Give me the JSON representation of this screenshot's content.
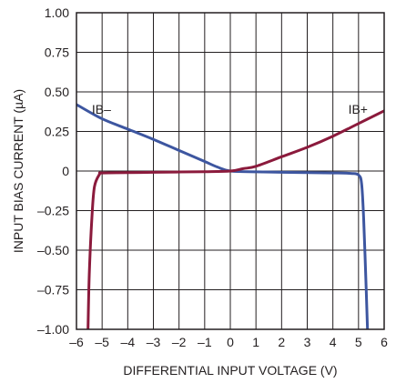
{
  "chart_data": {
    "type": "line",
    "title": "",
    "xlabel": "DIFFERENTIAL INPUT VOLTAGE (V)",
    "ylabel": "INPUT BIAS CURRENT (µA)",
    "xlim": [
      -6,
      6
    ],
    "ylim": [
      -1.0,
      1.0
    ],
    "x_ticks": [
      -6,
      -5,
      -4,
      -3,
      -2,
      -1,
      0,
      1,
      2,
      3,
      4,
      5,
      6
    ],
    "x_tick_labels": [
      "–6",
      "–5",
      "–4",
      "–3",
      "–2",
      "–1",
      "0",
      "1",
      "2",
      "3",
      "4",
      "5",
      "6"
    ],
    "y_ticks": [
      1.0,
      0.75,
      0.5,
      0.25,
      0,
      -0.25,
      -0.5,
      -0.75,
      -1.0
    ],
    "y_tick_labels": [
      "1.00",
      "0.75",
      "0.50",
      "0.25",
      "0",
      "–0.25",
      "–0.50",
      "–0.75",
      "–1.00"
    ],
    "grid": true,
    "legend": "none",
    "series": [
      {
        "name": "IB–",
        "color": "#3d56a0",
        "x": [
          -6.0,
          -5.0,
          -4.0,
          -3.0,
          -2.0,
          -1.0,
          -0.5,
          0.0,
          1.0,
          2.0,
          3.0,
          4.0,
          4.7,
          5.0,
          5.12,
          5.2,
          5.3,
          5.35
        ],
        "y": [
          0.42,
          0.33,
          0.265,
          0.2,
          0.13,
          0.06,
          0.025,
          0.0,
          -0.005,
          -0.008,
          -0.01,
          -0.012,
          -0.015,
          -0.025,
          -0.08,
          -0.3,
          -0.75,
          -1.0
        ]
      },
      {
        "name": "IB+",
        "color": "#8b1a3c",
        "x": [
          -5.55,
          -5.5,
          -5.4,
          -5.3,
          -5.1,
          -5.0,
          -4.0,
          -3.0,
          -2.0,
          -1.0,
          0.0,
          0.5,
          1.0,
          2.0,
          3.0,
          4.0,
          5.0,
          6.0
        ],
        "y": [
          -1.0,
          -0.65,
          -0.3,
          -0.1,
          -0.02,
          -0.012,
          -0.01,
          -0.008,
          -0.006,
          -0.004,
          0.0,
          0.015,
          0.03,
          0.09,
          0.15,
          0.22,
          0.3,
          0.38
        ]
      }
    ],
    "annotations": [
      {
        "text": "IB–",
        "x": -5.4,
        "y": 0.39
      },
      {
        "text": "IB+",
        "x": 4.6,
        "y": 0.39
      }
    ]
  }
}
